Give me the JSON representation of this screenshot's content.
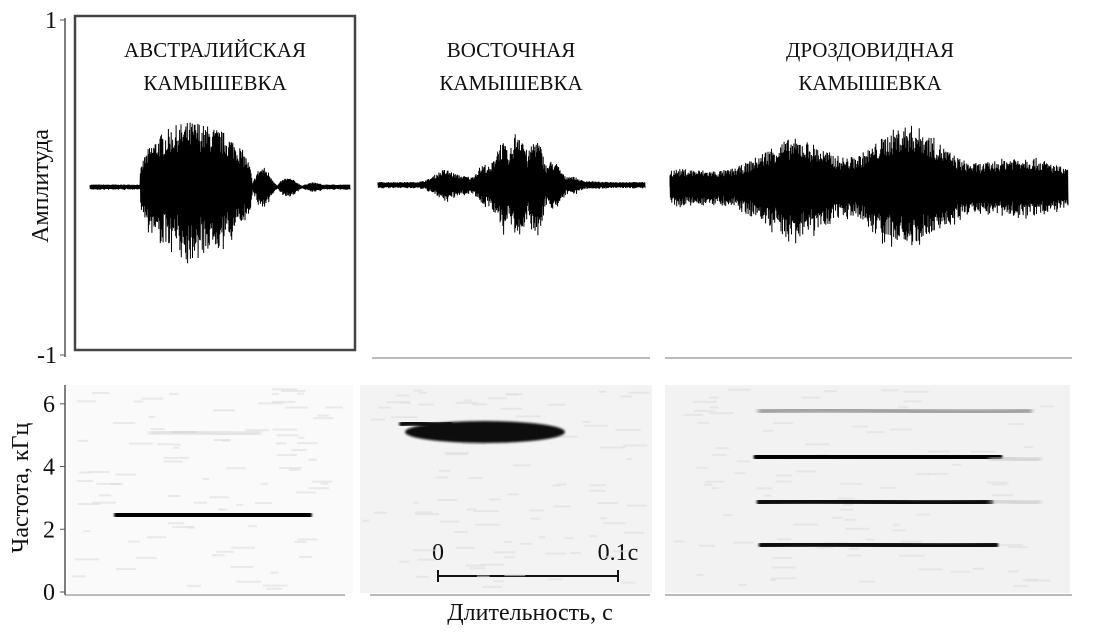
{
  "figure": {
    "panels": [
      {
        "title_lines": [
          "АВСТРАЛИЙСКАЯ",
          "КАМЫШЕВКА"
        ]
      },
      {
        "title_lines": [
          "ВОСТОЧНАЯ",
          "КАМЫШЕВКА"
        ]
      },
      {
        "title_lines": [
          "ДРОЗДОВИДНАЯ",
          "КАМЫШЕВКА"
        ]
      }
    ],
    "amplitude_axis": {
      "label": "Амплитуда",
      "ticks": [
        1,
        -1
      ],
      "lim": [
        -1,
        1
      ]
    },
    "frequency_axis": {
      "label": "Частота, кГц",
      "ticks": [
        0,
        2,
        4,
        6
      ],
      "lim": [
        0,
        6.6
      ]
    },
    "time_axis": {
      "label": "Длительность, с"
    },
    "scale_bar": {
      "start": "0",
      "end": "0.1с"
    }
  }
}
